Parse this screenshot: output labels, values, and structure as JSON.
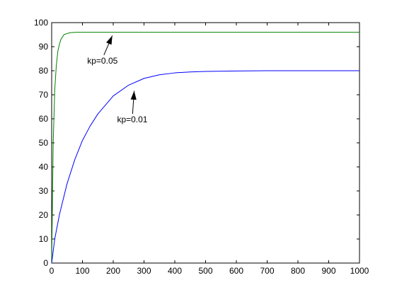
{
  "chart_data": {
    "type": "line",
    "title": "",
    "xlabel": "",
    "ylabel": "",
    "xlim": [
      0,
      1000
    ],
    "ylim": [
      0,
      100
    ],
    "xticks": [
      0,
      100,
      200,
      300,
      400,
      500,
      600,
      700,
      800,
      900,
      1000
    ],
    "yticks": [
      0,
      10,
      20,
      30,
      40,
      50,
      60,
      70,
      80,
      90,
      100
    ],
    "grid": false,
    "legend": "none",
    "series": [
      {
        "color": "#008000",
        "x": [
          0,
          5,
          10,
          15,
          20,
          25,
          30,
          40,
          50,
          60,
          80,
          100,
          150,
          200,
          300,
          500,
          1000
        ],
        "y": [
          0,
          50,
          72,
          82,
          88,
          91,
          93,
          95,
          95.5,
          95.8,
          96,
          96,
          96,
          96,
          96,
          96,
          96
        ]
      },
      {
        "color": "#0000ff",
        "x": [
          0,
          10,
          25,
          50,
          75,
          100,
          125,
          150,
          200,
          250,
          300,
          350,
          400,
          450,
          500,
          600,
          700,
          800,
          1000
        ],
        "y": [
          0,
          10,
          20,
          33,
          43,
          51,
          57,
          62,
          69.5,
          74,
          76.8,
          78.3,
          79.1,
          79.5,
          79.7,
          79.9,
          80,
          80,
          80
        ]
      }
    ],
    "annotations": [
      {
        "text": "kp=0.05",
        "text_x": 165,
        "text_y": 83,
        "arrow_to_x": 197,
        "arrow_to_y": 94.6
      },
      {
        "text": "kp=0.01",
        "text_x": 262,
        "text_y": 58.5,
        "arrow_to_x": 268,
        "arrow_to_y": 71.6
      }
    ]
  }
}
